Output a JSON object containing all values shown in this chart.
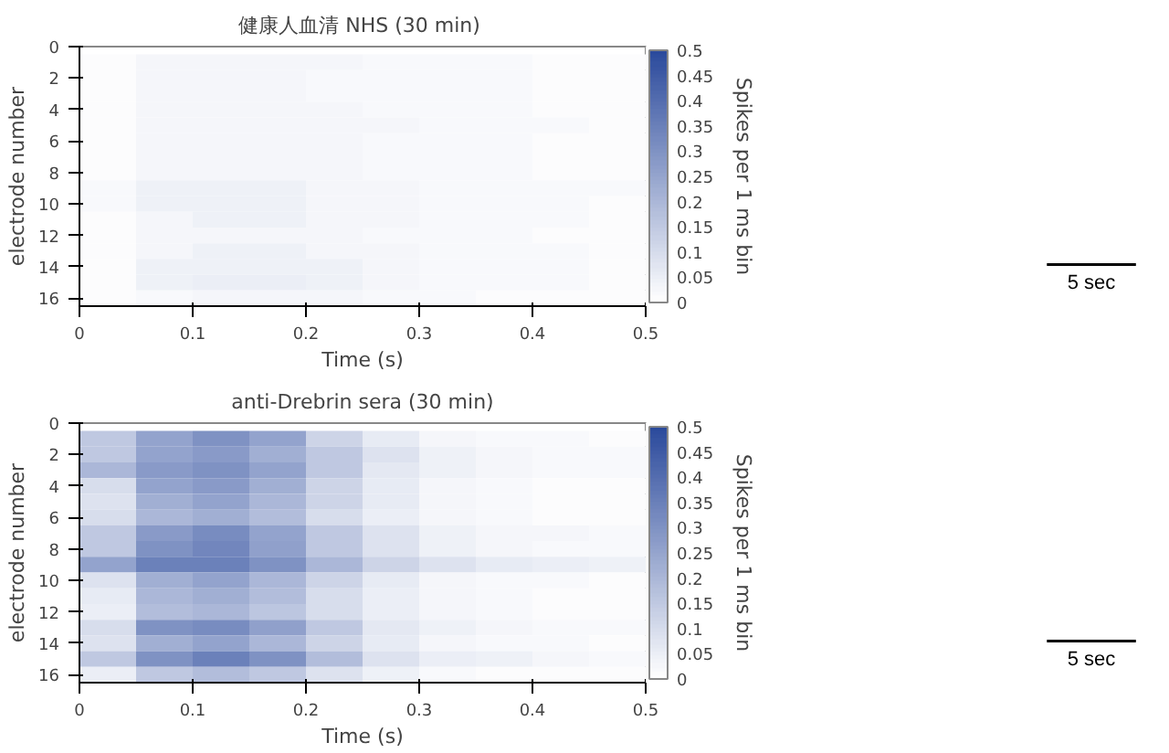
{
  "chart_data": [
    {
      "type": "heatmap",
      "title": "健康人血清  NHS (30 min)",
      "xlabel": "Time (s)",
      "ylabel": "electrode number",
      "clabel": "Spikes per 1 ms bin",
      "color": "#2b4a9c",
      "x": [
        0.025,
        0.075,
        0.125,
        0.175,
        0.225,
        0.275,
        0.325,
        0.375,
        0.425,
        0.475
      ],
      "y_categories": [
        "0",
        null,
        "2",
        null,
        "4",
        null,
        "6",
        null,
        "8",
        null,
        "10",
        null,
        "12",
        null,
        "14",
        null,
        "16"
      ],
      "xlim": [
        0,
        0.5
      ],
      "xticks": [
        0,
        0.1,
        0.2,
        0.3,
        0.4,
        0.5
      ],
      "clim": [
        0,
        0.5
      ],
      "cticks": [
        0,
        0.05,
        0.1,
        0.15,
        0.2,
        0.25,
        0.3,
        0.35,
        0.4,
        0.45,
        0.5
      ],
      "cells": [
        [
          null,
          null,
          null,
          null,
          null,
          null,
          null,
          null,
          null,
          null
        ],
        [
          0.01,
          0.03,
          0.03,
          0.03,
          0.03,
          0.02,
          0.02,
          0.02,
          0.01,
          0.01
        ],
        [
          0.01,
          0.03,
          0.03,
          0.03,
          0.02,
          0.02,
          0.02,
          0.02,
          0.01,
          0.01
        ],
        [
          0.01,
          0.03,
          0.03,
          0.03,
          0.02,
          0.02,
          0.02,
          0.02,
          0.01,
          0.01
        ],
        [
          0.01,
          0.03,
          0.03,
          0.03,
          0.03,
          0.02,
          0.02,
          0.02,
          0.01,
          0.01
        ],
        [
          0.01,
          0.03,
          0.03,
          0.03,
          0.03,
          0.03,
          0.02,
          0.02,
          0.02,
          0.01
        ],
        [
          0.01,
          0.03,
          0.03,
          0.03,
          0.03,
          0.02,
          0.02,
          0.02,
          0.01,
          0.01
        ],
        [
          0.01,
          0.03,
          0.03,
          0.03,
          0.03,
          0.02,
          0.02,
          0.02,
          0.01,
          0.01
        ],
        [
          0.01,
          0.03,
          0.03,
          0.03,
          0.03,
          0.02,
          0.02,
          0.02,
          0.01,
          0.01
        ],
        [
          0.02,
          0.04,
          0.04,
          0.04,
          0.03,
          0.03,
          0.02,
          0.02,
          0.02,
          0.02
        ],
        [
          0.02,
          0.04,
          0.04,
          0.04,
          0.03,
          0.03,
          0.02,
          0.02,
          0.02,
          0.01
        ],
        [
          0.01,
          0.03,
          0.04,
          0.04,
          0.03,
          0.03,
          0.02,
          0.02,
          0.02,
          0.01
        ],
        [
          0.01,
          0.03,
          0.03,
          0.03,
          0.03,
          0.02,
          0.02,
          0.02,
          0.01,
          0.01
        ],
        [
          0.01,
          0.03,
          0.04,
          0.04,
          0.03,
          0.03,
          0.02,
          0.02,
          0.02,
          0.01
        ],
        [
          0.01,
          0.04,
          0.04,
          0.04,
          0.04,
          0.03,
          0.02,
          0.02,
          0.02,
          0.01
        ],
        [
          0.01,
          0.04,
          0.05,
          0.05,
          0.04,
          0.03,
          0.02,
          0.02,
          0.02,
          0.01
        ],
        [
          0.01,
          0.02,
          0.03,
          0.03,
          0.03,
          0.02,
          0.02,
          0.01,
          0.01,
          0.01
        ]
      ]
    },
    {
      "type": "other",
      "annotations": [
        "5 sec"
      ]
    },
    {
      "type": "heatmap",
      "title": "anti-Drebrin sera (30 min)",
      "xlabel": "Time (s)",
      "ylabel": "electrode number",
      "clabel": "Spikes per 1 ms bin",
      "color": "#2b4a9c",
      "x": [
        0.025,
        0.075,
        0.125,
        0.175,
        0.225,
        0.275,
        0.325,
        0.375,
        0.425,
        0.475
      ],
      "y_categories": [
        "0",
        null,
        "2",
        null,
        "4",
        null,
        "6",
        null,
        "8",
        null,
        "10",
        null,
        "12",
        null,
        "14",
        null,
        "16"
      ],
      "xlim": [
        0,
        0.5
      ],
      "xticks": [
        0,
        0.1,
        0.2,
        0.3,
        0.4,
        0.5
      ],
      "clim": [
        0,
        0.5
      ],
      "cticks": [
        0,
        0.05,
        0.1,
        0.15,
        0.2,
        0.25,
        0.3,
        0.35,
        0.4,
        0.45,
        0.5
      ],
      "cells": [
        [
          null,
          null,
          null,
          null,
          null,
          null,
          null,
          null,
          null,
          null
        ],
        [
          0.15,
          0.25,
          0.3,
          0.25,
          0.12,
          0.06,
          0.03,
          0.02,
          0.02,
          0.01
        ],
        [
          0.15,
          0.25,
          0.28,
          0.22,
          0.15,
          0.08,
          0.04,
          0.03,
          0.02,
          0.02
        ],
        [
          0.2,
          0.28,
          0.3,
          0.25,
          0.15,
          0.07,
          0.04,
          0.03,
          0.02,
          0.02
        ],
        [
          0.1,
          0.25,
          0.28,
          0.22,
          0.12,
          0.06,
          0.03,
          0.02,
          0.01,
          0.01
        ],
        [
          0.08,
          0.22,
          0.25,
          0.2,
          0.12,
          0.06,
          0.03,
          0.02,
          0.01,
          0.01
        ],
        [
          0.1,
          0.2,
          0.22,
          0.18,
          0.1,
          0.05,
          0.03,
          0.02,
          0.01,
          0.01
        ],
        [
          0.15,
          0.28,
          0.32,
          0.25,
          0.15,
          0.08,
          0.04,
          0.03,
          0.03,
          0.02
        ],
        [
          0.15,
          0.3,
          0.33,
          0.26,
          0.15,
          0.08,
          0.04,
          0.03,
          0.02,
          0.02
        ],
        [
          0.25,
          0.35,
          0.35,
          0.3,
          0.2,
          0.12,
          0.08,
          0.06,
          0.05,
          0.04
        ],
        [
          0.08,
          0.22,
          0.25,
          0.2,
          0.12,
          0.06,
          0.03,
          0.02,
          0.02,
          0.01
        ],
        [
          0.06,
          0.2,
          0.22,
          0.18,
          0.1,
          0.05,
          0.03,
          0.02,
          0.01,
          0.01
        ],
        [
          0.05,
          0.18,
          0.2,
          0.16,
          0.1,
          0.05,
          0.03,
          0.02,
          0.01,
          0.01
        ],
        [
          0.1,
          0.3,
          0.32,
          0.26,
          0.15,
          0.07,
          0.04,
          0.03,
          0.02,
          0.02
        ],
        [
          0.08,
          0.22,
          0.25,
          0.2,
          0.12,
          0.06,
          0.03,
          0.02,
          0.02,
          0.01
        ],
        [
          0.15,
          0.3,
          0.35,
          0.3,
          0.18,
          0.08,
          0.05,
          0.04,
          0.03,
          0.02
        ],
        [
          0.05,
          0.15,
          0.18,
          0.15,
          0.08,
          0.04,
          0.02,
          0.01,
          0.01,
          0.01
        ]
      ]
    },
    {
      "type": "other",
      "annotations": [
        "5 sec"
      ]
    }
  ]
}
